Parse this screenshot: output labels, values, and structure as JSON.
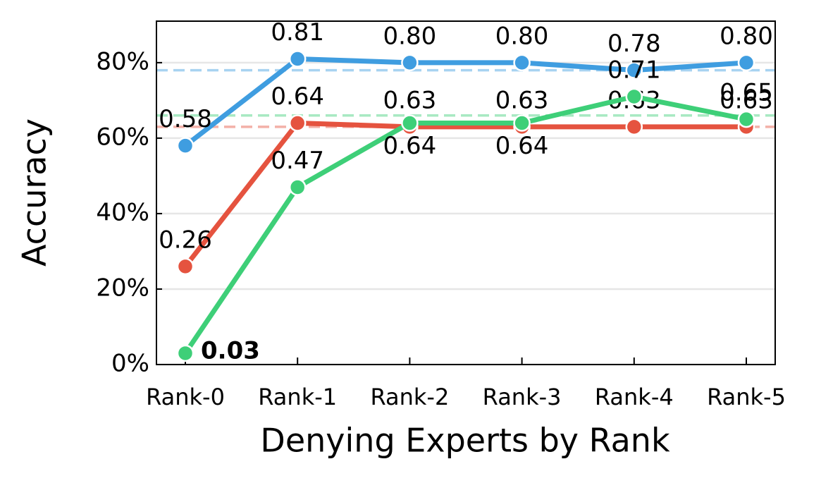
{
  "chart_data": {
    "type": "line",
    "xlabel": "Denying Experts by Rank",
    "ylabel": "Accuracy",
    "categories": [
      "Rank-0",
      "Rank-1",
      "Rank-2",
      "Rank-3",
      "Rank-4",
      "Rank-5"
    ],
    "series": [
      {
        "color": "#3f9de0",
        "values": [
          0.58,
          0.81,
          0.8,
          0.8,
          0.78,
          0.8
        ],
        "value_labels": [
          "0.58",
          "0.81",
          "0.80",
          "0.80",
          "0.78",
          "0.80"
        ],
        "baseline": 0.78
      },
      {
        "color": "#e5533f",
        "values": [
          0.26,
          0.64,
          0.63,
          0.63,
          0.63,
          0.63
        ],
        "value_labels": [
          "0.26",
          "0.64",
          "0.63",
          "0.63",
          "0.63",
          "0.63"
        ],
        "baseline": 0.63
      },
      {
        "color": "#3ecf78",
        "values": [
          0.03,
          0.47,
          0.64,
          0.64,
          0.71,
          0.65
        ],
        "value_labels": [
          "0.03",
          "0.47",
          "0.64",
          "0.64",
          "0.71",
          "0.65"
        ],
        "baseline": 0.66
      }
    ],
    "ylim": [
      0,
      0.91
    ],
    "yticks": [
      {
        "value": 0,
        "label": "0%"
      },
      {
        "value": 0.2,
        "label": "20%"
      },
      {
        "value": 0.4,
        "label": "40%"
      },
      {
        "value": 0.6,
        "label": "60%"
      },
      {
        "value": 0.8,
        "label": "80%"
      }
    ],
    "grid": true
  }
}
